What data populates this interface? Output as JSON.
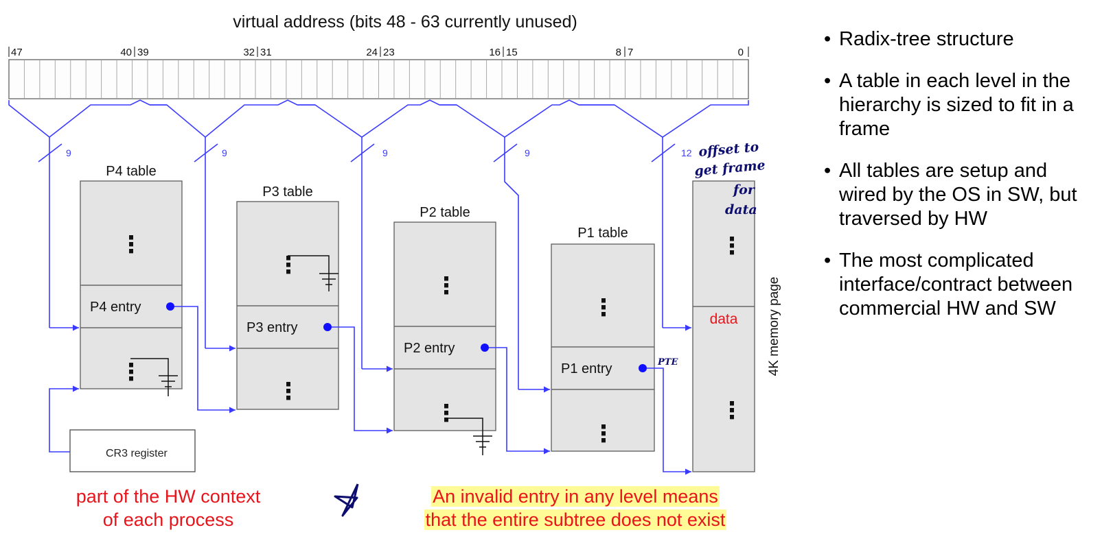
{
  "title": "virtual address (bits 48 - 63 currently unused)",
  "bit_labels": [
    "47",
    "40",
    "39",
    "32",
    "31",
    "24",
    "23",
    "16",
    "15",
    "8",
    "7",
    "0"
  ],
  "index_widths": [
    "9",
    "9",
    "9",
    "9",
    "12"
  ],
  "tables": {
    "p4": {
      "title": "P4 table",
      "entry": "P4 entry"
    },
    "p3": {
      "title": "P3 table",
      "entry": "P3 entry"
    },
    "p2": {
      "title": "P2 table",
      "entry": "P2 entry"
    },
    "p1": {
      "title": "P1 table",
      "entry": "P1 entry"
    },
    "page": {
      "data": "data",
      "side_label": "4K memory page"
    }
  },
  "ellipsis": "⋮",
  "cr3": "CR3 register",
  "handwritten": {
    "offset_note": [
      "offset to",
      "get frame",
      "for",
      "data"
    ],
    "pte": "PTE"
  },
  "captions": {
    "hw_context": [
      "part of the HW context",
      "of each process"
    ],
    "invalid": [
      "An invalid entry in any level means",
      "that the entire subtree does not exist"
    ]
  },
  "bullets": [
    "Radix-tree structure",
    "A table in each level in the hierarchy is sized to fit in a frame",
    "All tables are setup and wired by the OS in SW, but traversed by HW",
    "The most complicated interface/contract between commercial HW and SW"
  ],
  "colors": {
    "arrow": "#3a3aff",
    "dot": "#1010ff",
    "caption": "#e8141b",
    "highlight": "#fffb96",
    "table_fill": "#e4e4e4",
    "ink": "#0d0d6e"
  }
}
